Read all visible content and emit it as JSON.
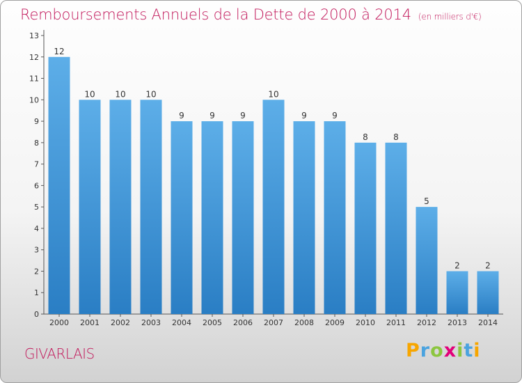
{
  "header": {
    "title": "Remboursements Annuels de la Dette de 2000 à 2014",
    "unit": "(en milliers d'€)"
  },
  "footer": {
    "commune": "GIVARLAIS",
    "logo": {
      "letters": [
        "P",
        "r",
        "o",
        "x",
        "i",
        "t",
        "i"
      ],
      "colors": [
        "#f7a600",
        "#4aa3df",
        "#8cc63f",
        "#e2007a",
        "#8cc63f",
        "#4aa3df",
        "#f7a600"
      ]
    }
  },
  "colors": {
    "title": "#c2185b",
    "bar_light": "#5daee8",
    "bar_dark": "#2a7ec4",
    "axis": "#555555"
  },
  "chart_data": {
    "type": "bar",
    "categories": [
      "2000",
      "2001",
      "2002",
      "2003",
      "2004",
      "2005",
      "2006",
      "2007",
      "2008",
      "2009",
      "2010",
      "2011",
      "2012",
      "2013",
      "2014"
    ],
    "values": [
      12,
      10,
      10,
      10,
      9,
      9,
      9,
      10,
      9,
      9,
      8,
      8,
      5,
      2,
      2
    ],
    "y_ticks": [
      0,
      1,
      2,
      3,
      4,
      5,
      6,
      7,
      8,
      9,
      10,
      11,
      12,
      13
    ],
    "ylim": [
      0,
      13
    ],
    "grid": false,
    "data_labels": true
  }
}
